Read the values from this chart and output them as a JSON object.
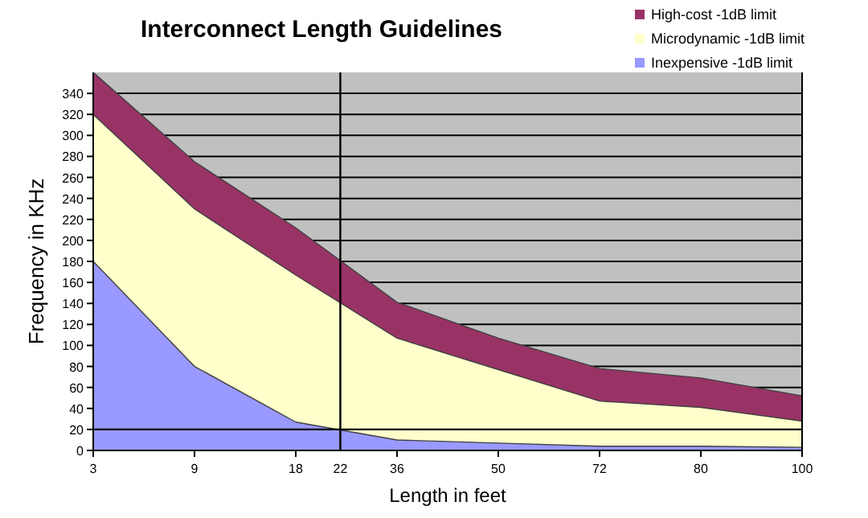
{
  "chart_data": {
    "type": "area",
    "title": "Interconnect Length Guidelines",
    "xlabel": "Length in feet",
    "ylabel": "Frequency in KHz",
    "categories": [
      "3",
      "9",
      "18",
      "36",
      "50",
      "72",
      "80",
      "100"
    ],
    "annotations": [
      "22"
    ],
    "series": [
      {
        "name": "High-cost -1dB limit",
        "color": "#993366",
        "values": [
          360,
          275,
          212,
          141,
          107,
          78,
          69,
          52
        ]
      },
      {
        "name": "Microdynamic -1dB limit",
        "color": "#ffffcc",
        "values": [
          320,
          230,
          167,
          107,
          77,
          47,
          41,
          28
        ]
      },
      {
        "name": "Inexpensive -1dB limit",
        "color": "#9999ff",
        "values": [
          180,
          80,
          27,
          10,
          7,
          4,
          4,
          3
        ]
      }
    ],
    "ylim": [
      0,
      360
    ],
    "yticks": [
      0,
      20,
      40,
      60,
      80,
      100,
      120,
      140,
      160,
      180,
      200,
      220,
      240,
      260,
      280,
      300,
      320,
      340
    ],
    "grid": "y",
    "legend": "top right",
    "ref_lines": [
      {
        "axis": "y",
        "value": 20
      }
    ]
  }
}
